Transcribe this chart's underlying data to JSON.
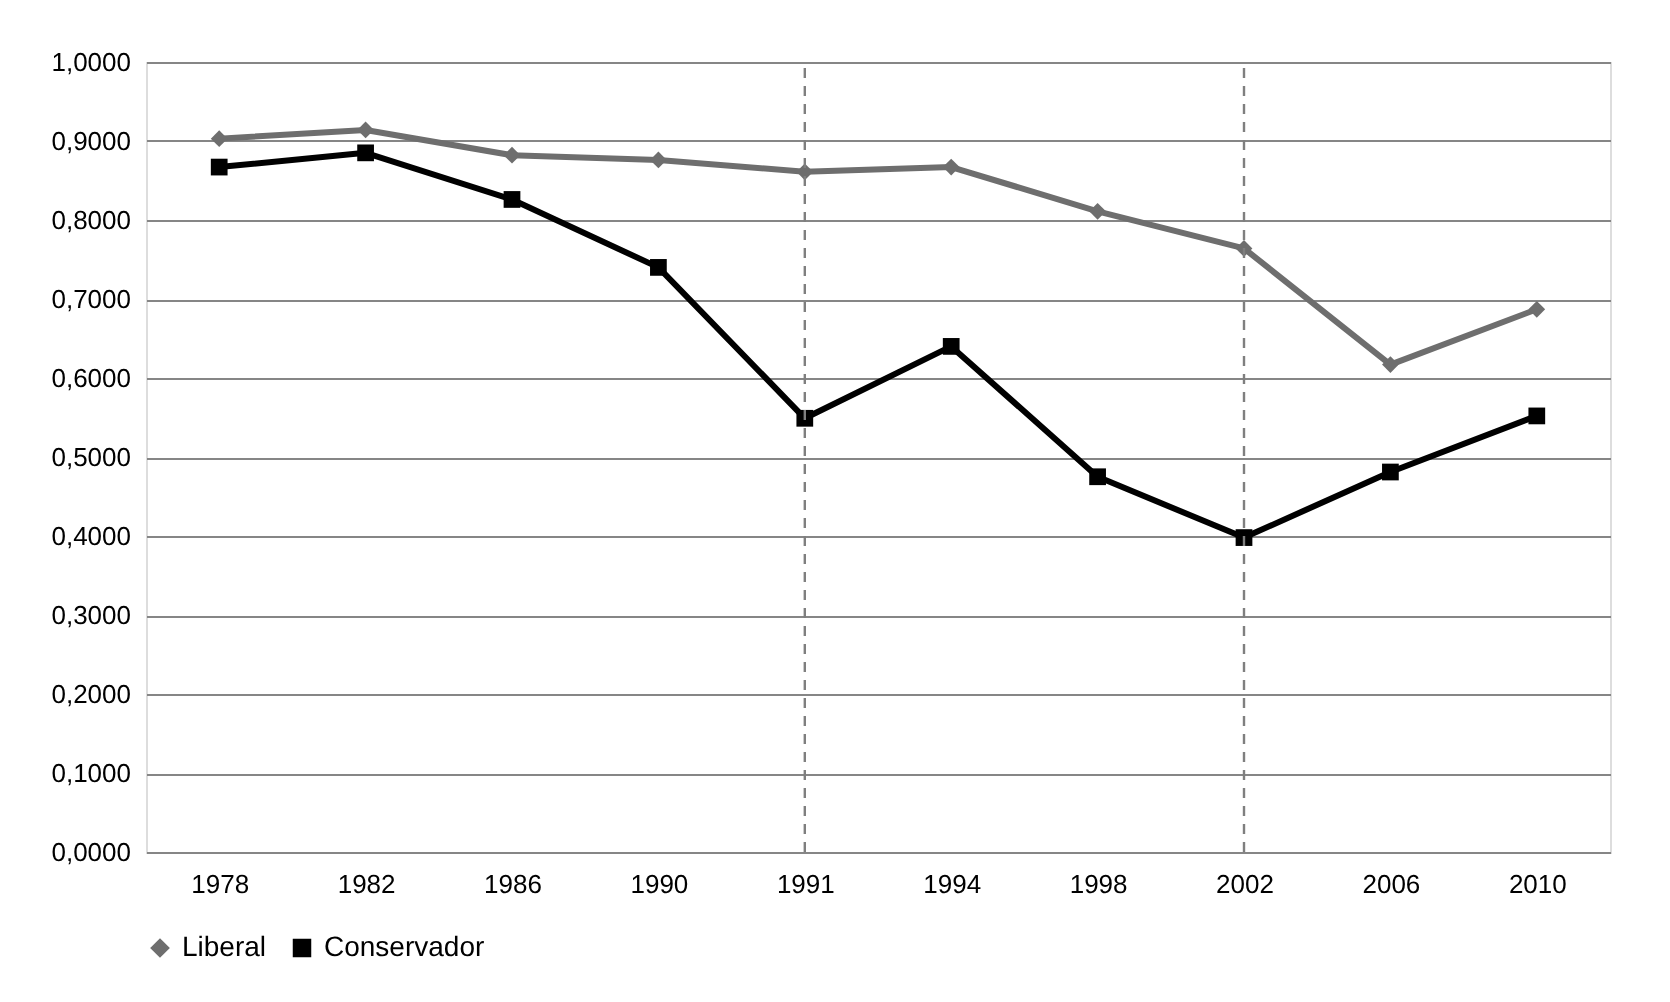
{
  "chart_data": {
    "type": "line",
    "categories": [
      "1978",
      "1982",
      "1986",
      "1990",
      "1991",
      "1994",
      "1998",
      "2002",
      "2006",
      "2010"
    ],
    "series": [
      {
        "name": "Liberal",
        "color": "#6e6e6e",
        "marker": "diamond",
        "values": [
          0.903,
          0.914,
          0.882,
          0.876,
          0.861,
          0.867,
          0.811,
          0.764,
          0.617,
          0.687
        ]
      },
      {
        "name": "Conservador",
        "color": "#000000",
        "marker": "square",
        "values": [
          0.867,
          0.885,
          0.826,
          0.74,
          0.549,
          0.64,
          0.475,
          0.398,
          0.481,
          0.552
        ]
      }
    ],
    "ylim": [
      0,
      1
    ],
    "yticks": [
      {
        "value": 0,
        "label": "0,0000"
      },
      {
        "value": 0.1,
        "label": "0,1000"
      },
      {
        "value": 0.2,
        "label": "0,2000"
      },
      {
        "value": 0.3,
        "label": "0,3000"
      },
      {
        "value": 0.4,
        "label": "0,4000"
      },
      {
        "value": 0.5,
        "label": "0,5000"
      },
      {
        "value": 0.6,
        "label": "0,6000"
      },
      {
        "value": 0.7,
        "label": "0,7000"
      },
      {
        "value": 0.8,
        "label": "0,8000"
      },
      {
        "value": 0.9,
        "label": "0,9000"
      },
      {
        "value": 1,
        "label": "1,0000"
      }
    ],
    "ref_lines": [
      {
        "axis": "x",
        "value": "1991",
        "color": "#7f7f7f",
        "line_style": "dashed"
      },
      {
        "axis": "x",
        "value": "2002",
        "color": "#7f7f7f",
        "line_style": "dashed"
      }
    ],
    "grid": "y",
    "legend": "bottom",
    "line_style": "solid"
  }
}
